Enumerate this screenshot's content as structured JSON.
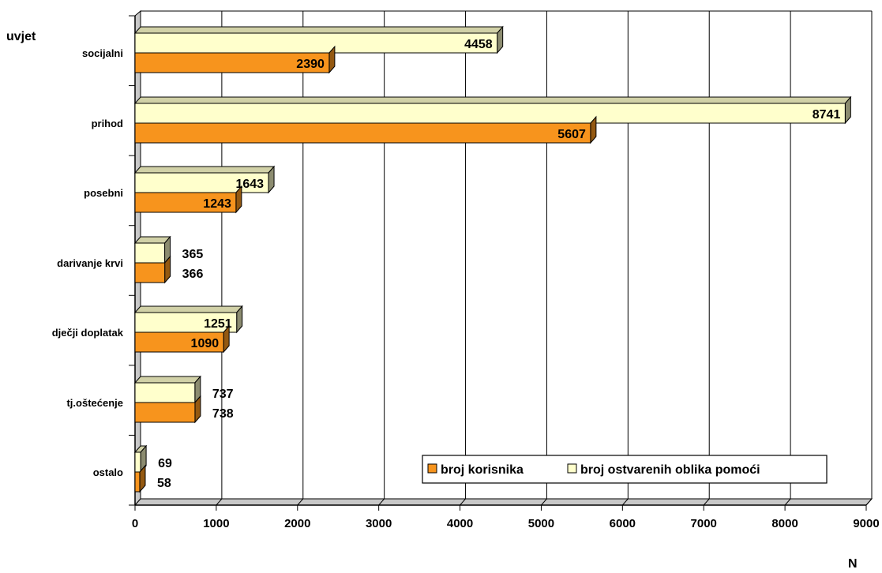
{
  "chart_data": {
    "type": "bar",
    "orientation": "horizontal",
    "ylabel": "uvjet",
    "xlabel": "N",
    "categories": [
      "socijalni",
      "prihod",
      "posebni",
      "darivanje krvi",
      "dječji doplatak",
      "tj.oštećenje",
      "ostalo"
    ],
    "series": [
      {
        "name": "broj ostvarenih oblika pomoći",
        "color": "#FFFFCC",
        "values": [
          4458,
          8741,
          1643,
          365,
          1251,
          737,
          69
        ],
        "labels": [
          "4458",
          "8741",
          "1643",
          "365",
          "1251",
          "737",
          "69"
        ]
      },
      {
        "name": "broj korisnika",
        "color": "#F7941D",
        "values": [
          2390,
          5607,
          1243,
          366,
          1090,
          738,
          58
        ],
        "labels": [
          "2390",
          "5607",
          "1243",
          "366",
          "1090",
          "738",
          "58"
        ]
      }
    ],
    "xlim": [
      0,
      9000
    ],
    "xticks": [
      "0",
      "1000",
      "2000",
      "3000",
      "4000",
      "5000",
      "6000",
      "7000",
      "8000",
      "9000"
    ],
    "grid": "vertical",
    "legend_position": "bottom-right",
    "legend_order": [
      "broj korisnika",
      "broj ostvarenih oblika pomoći"
    ]
  }
}
